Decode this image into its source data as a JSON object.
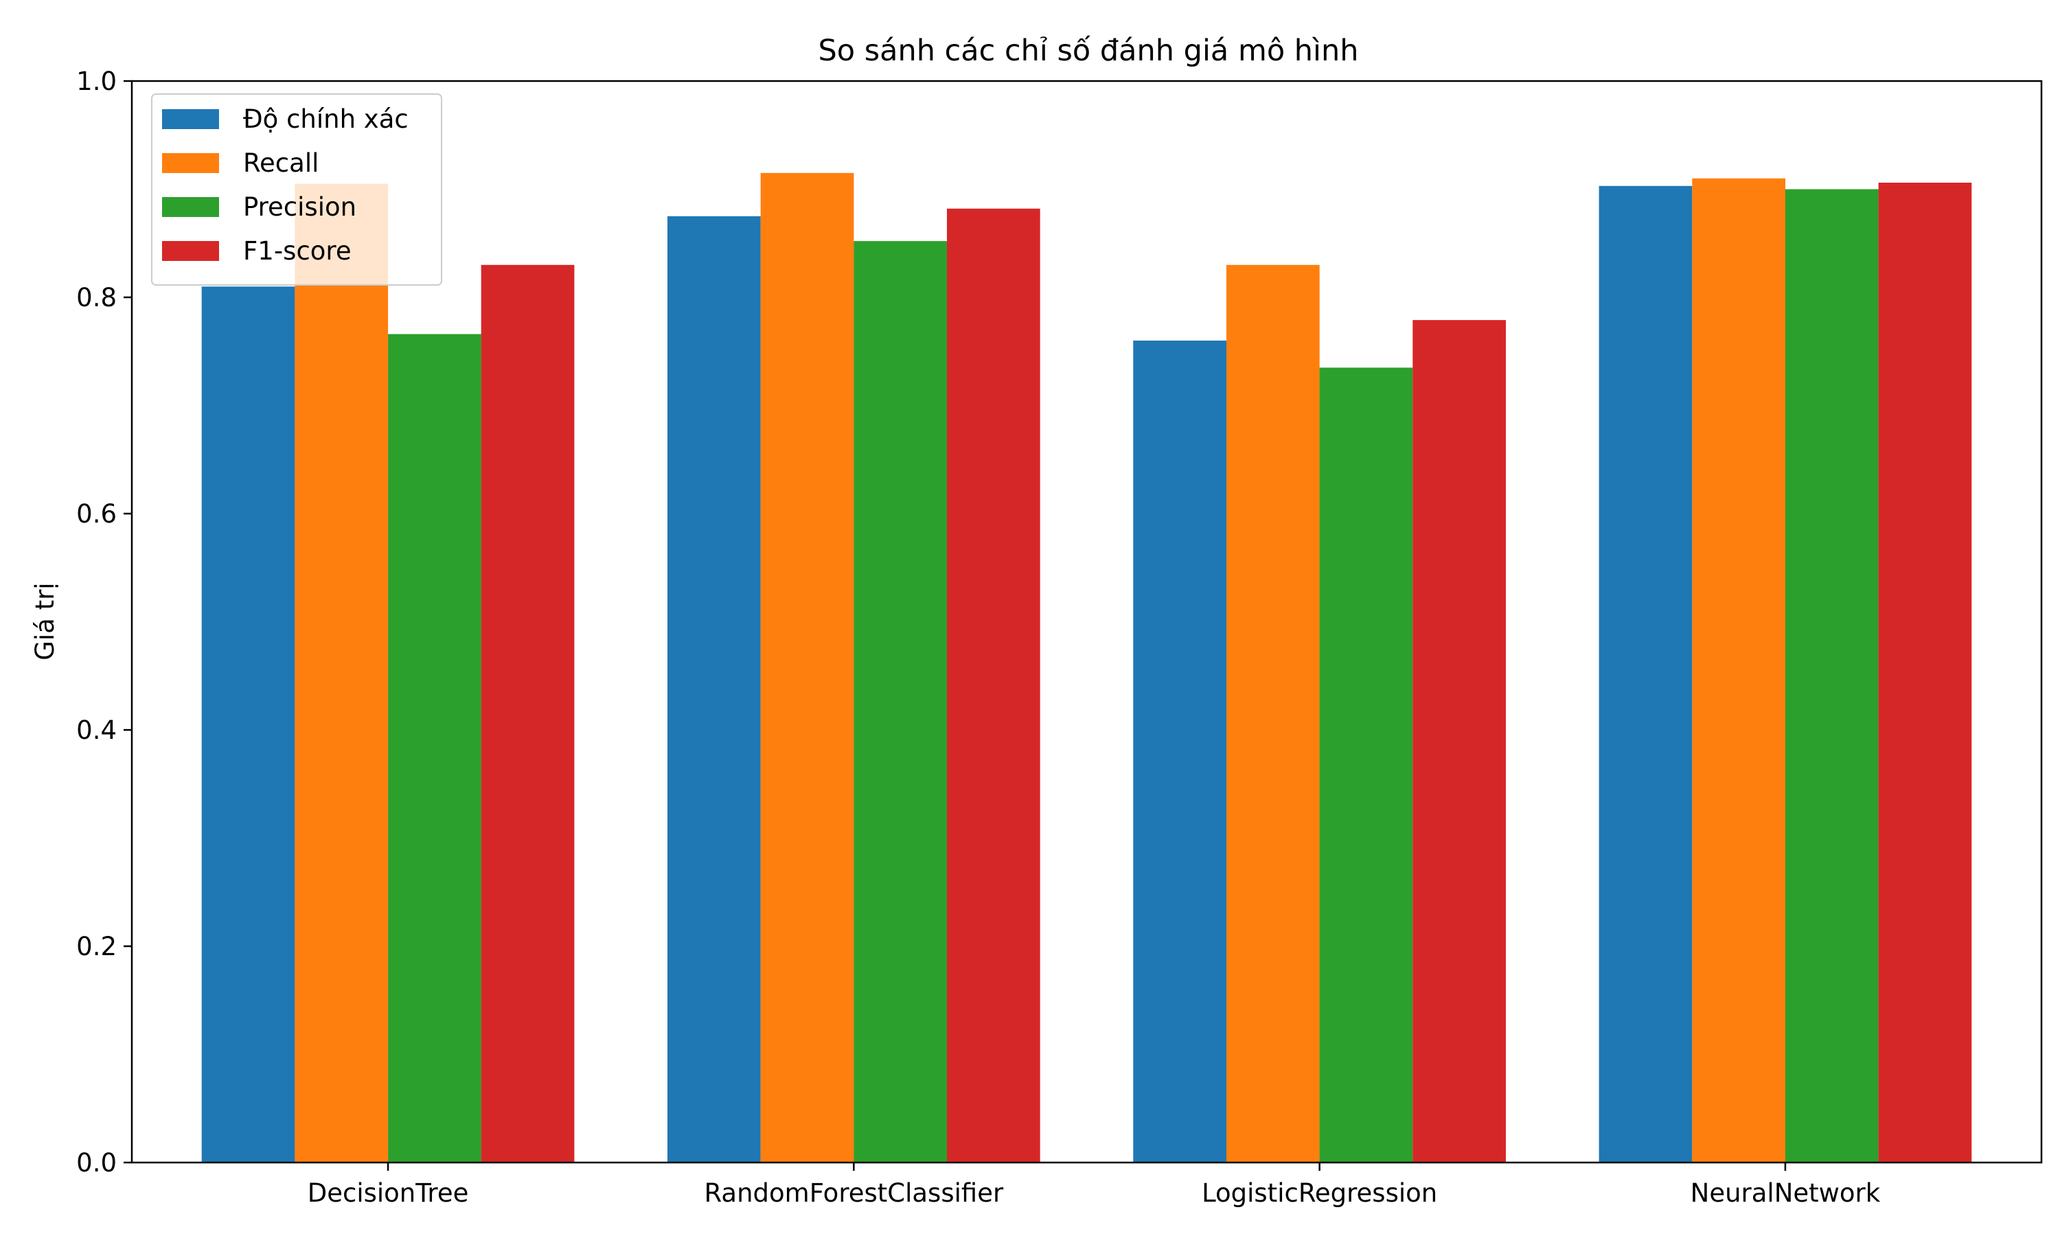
{
  "chart_data": {
    "type": "bar",
    "title": "So sánh các chỉ số đánh giá mô hình",
    "xlabel": "",
    "ylabel": "Giá trị",
    "ylim": [
      0,
      1.0
    ],
    "yticks": [
      "0.0",
      "0.2",
      "0.4",
      "0.6",
      "0.8",
      "1.0"
    ],
    "grid": false,
    "legend_position": "top-left",
    "categories": [
      "DecisionTree",
      "RandomForestClassifier",
      "LogisticRegression",
      "NeuralNetwork"
    ],
    "series": [
      {
        "name": "Độ chính xác",
        "color": "#1f77b4",
        "values": [
          0.81,
          0.875,
          0.76,
          0.903
        ]
      },
      {
        "name": "Recall",
        "color": "#ff7f0e",
        "values": [
          0.905,
          0.915,
          0.83,
          0.91
        ]
      },
      {
        "name": "Precision",
        "color": "#2ca02c",
        "values": [
          0.766,
          0.852,
          0.735,
          0.9
        ]
      },
      {
        "name": "F1-score",
        "color": "#d62728",
        "values": [
          0.83,
          0.882,
          0.779,
          0.906
        ]
      }
    ]
  }
}
